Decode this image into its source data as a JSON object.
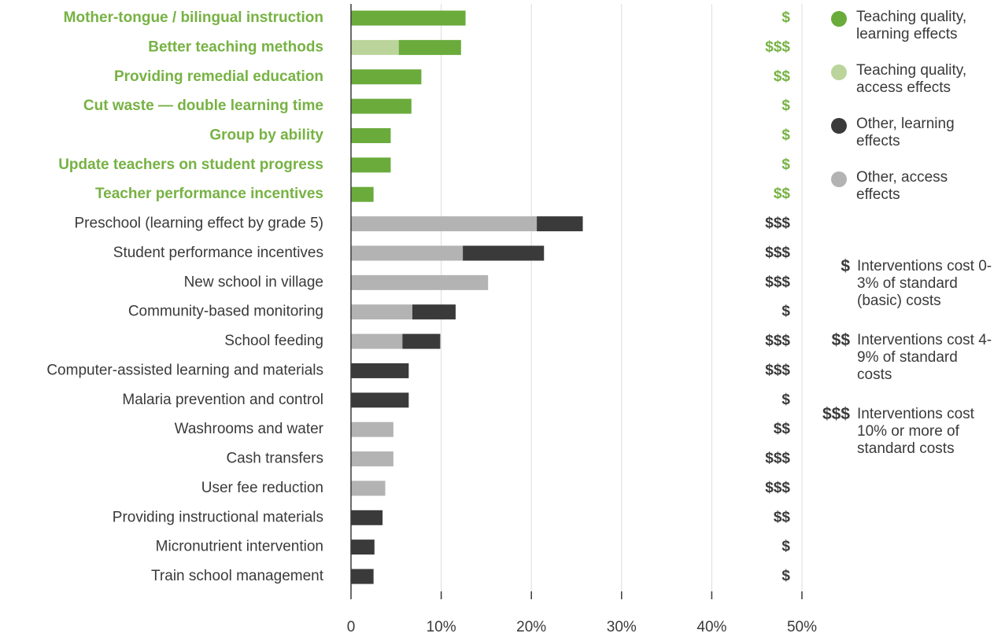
{
  "chart_data": {
    "type": "stacked-barh",
    "categories": [
      "Mother-tongue / bilingual instruction",
      "Better teaching methods",
      "Providing remedial education",
      "Cut waste — double learning time",
      "Group by ability",
      "Update teachers on student progress",
      "Teacher performance incentives",
      "Preschool (learning effect by grade 5)",
      "Student performance incentives",
      "New school in village",
      "Community-based monitoring",
      "School feeding",
      "Computer-assisted learning and materials",
      "Malaria prevention and control",
      "Washrooms and water",
      "Cash transfers",
      "User fee reduction",
      "Providing instructional materials",
      "Micronutrient intervention",
      "Train school management"
    ],
    "series": [
      {
        "name": "Teaching quality, learning effects",
        "color": "#6aab3b",
        "values": [
          12.7,
          6.9,
          7.8,
          6.7,
          4.4,
          4.4,
          2.5,
          null,
          null,
          null,
          null,
          null,
          null,
          null,
          null,
          null,
          null,
          null,
          null,
          null
        ]
      },
      {
        "name": "Teaching quality, access effects",
        "color": "#bad49b",
        "values": [
          null,
          5.3,
          null,
          null,
          null,
          null,
          null,
          null,
          null,
          null,
          null,
          null,
          null,
          null,
          null,
          null,
          null,
          null,
          null,
          null
        ]
      },
      {
        "name": "Other, learning effects",
        "color": "#3a3a3a",
        "values": [
          null,
          null,
          null,
          null,
          null,
          null,
          null,
          5.1,
          9.0,
          null,
          4.8,
          4.2,
          6.4,
          6.4,
          null,
          null,
          null,
          3.5,
          2.6,
          2.5
        ]
      },
      {
        "name": "Other, access effects",
        "color": "#b3b3b3",
        "values": [
          null,
          null,
          null,
          null,
          null,
          null,
          null,
          20.6,
          12.4,
          15.2,
          6.8,
          5.7,
          null,
          null,
          4.7,
          4.7,
          3.8,
          null,
          null,
          null
        ]
      }
    ],
    "costs": [
      "$",
      "$$$",
      "$$",
      "$",
      "$",
      "$",
      "$$",
      "$$$",
      "$$$",
      "$$$",
      "$",
      "$$$",
      "$$$",
      "$",
      "$$",
      "$$$",
      "$$$",
      "$$",
      "$",
      "$"
    ],
    "cost_legend": [
      {
        "symbol": "$",
        "label": "Interventions cost 0-3% of standard (basic) costs"
      },
      {
        "symbol": "$$",
        "label": "Interventions cost 4-9% of standard costs"
      },
      {
        "symbol": "$$$",
        "label": "Interventions cost 10% or more of standard costs"
      }
    ],
    "xlim": [
      0,
      50
    ],
    "xticks": [
      0,
      {
        "value": 10,
        "label": "10%"
      },
      {
        "value": 20,
        "label": "20%"
      },
      {
        "value": 30,
        "label": "30%"
      },
      {
        "value": 40,
        "label": "40%"
      },
      {
        "value": 50,
        "label": "50%"
      }
    ],
    "grid": true
  }
}
